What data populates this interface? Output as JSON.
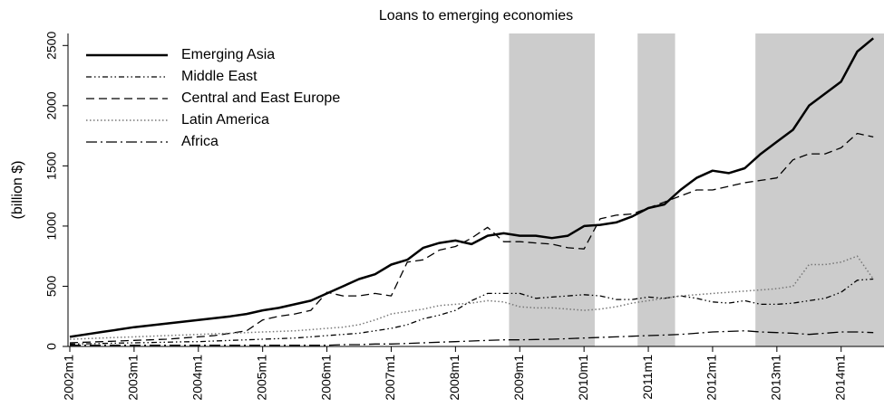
{
  "chart_data": {
    "type": "line",
    "title": "Loans to emerging economies",
    "y_label": "(billion $)",
    "x": [
      "2002m1",
      "2002m4",
      "2002m7",
      "2002m10",
      "2003m1",
      "2003m4",
      "2003m7",
      "2003m10",
      "2004m1",
      "2004m4",
      "2004m7",
      "2004m10",
      "2005m1",
      "2005m4",
      "2005m7",
      "2005m10",
      "2006m1",
      "2006m4",
      "2006m7",
      "2006m10",
      "2007m1",
      "2007m4",
      "2007m7",
      "2007m10",
      "2008m1",
      "2008m4",
      "2008m7",
      "2008m10",
      "2009m1",
      "2009m4",
      "2009m7",
      "2009m10",
      "2010m1",
      "2010m4",
      "2010m7",
      "2010m10",
      "2011m1",
      "2011m4",
      "2011m7",
      "2011m10",
      "2012m1",
      "2012m4",
      "2012m7",
      "2012m10",
      "2013m1",
      "2013m4",
      "2013m7",
      "2013m10",
      "2014m1",
      "2014m4",
      "2014m7"
    ],
    "xlim": [
      "2002m1",
      "2014m9"
    ],
    "xticks": [
      "2002m1",
      "2003m1",
      "2004m1",
      "2005m1",
      "2006m1",
      "2007m1",
      "2008m1",
      "2009m1",
      "2010m1",
      "2011m1",
      "2012m1",
      "2013m1",
      "2014m1"
    ],
    "ylim": [
      0,
      2600
    ],
    "yticks": [
      0,
      500,
      1000,
      1500,
      2000,
      2500
    ],
    "shaded_periods": [
      {
        "start": "2008m11",
        "end": "2010m3"
      },
      {
        "start": "2010m11",
        "end": "2011m6"
      },
      {
        "start": "2012m9",
        "end": "2014m9"
      }
    ],
    "shade_color": "#cccccc",
    "series": [
      {
        "name": "Emerging Asia",
        "color": "#000000",
        "dash": "none",
        "width": 2.5,
        "values": [
          80,
          100,
          120,
          140,
          160,
          175,
          190,
          205,
          220,
          235,
          250,
          270,
          300,
          320,
          350,
          380,
          440,
          500,
          560,
          600,
          680,
          720,
          820,
          860,
          880,
          850,
          920,
          940,
          920,
          920,
          900,
          920,
          1000,
          1010,
          1030,
          1080,
          1150,
          1180,
          1300,
          1400,
          1460,
          1440,
          1480,
          1600,
          1700,
          1800,
          2000,
          2100,
          2200,
          2450,
          2560
        ]
      },
      {
        "name": "Middle East",
        "color": "#000000",
        "dash": "6 3 1.5 3 1.5 3",
        "width": 1.3,
        "values": [
          20,
          22,
          25,
          28,
          30,
          32,
          35,
          38,
          40,
          45,
          50,
          55,
          60,
          65,
          70,
          80,
          90,
          100,
          110,
          130,
          150,
          180,
          230,
          260,
          300,
          380,
          440,
          440,
          440,
          400,
          410,
          420,
          430,
          420,
          390,
          390,
          410,
          400,
          420,
          400,
          370,
          360,
          380,
          350,
          350,
          360,
          380,
          400,
          450,
          550,
          560
        ]
      },
      {
        "name": "Central and East Europe",
        "color": "#000000",
        "dash": "9 5",
        "width": 1.3,
        "values": [
          30,
          35,
          40,
          45,
          50,
          55,
          60,
          70,
          80,
          90,
          110,
          130,
          220,
          250,
          270,
          300,
          450,
          420,
          420,
          440,
          420,
          700,
          720,
          800,
          830,
          900,
          990,
          870,
          870,
          860,
          850,
          820,
          810,
          1060,
          1090,
          1100,
          1150,
          1200,
          1250,
          1300,
          1300,
          1330,
          1360,
          1380,
          1400,
          1550,
          1600,
          1600,
          1650,
          1770,
          1740
        ]
      },
      {
        "name": "Latin America",
        "color": "#777777",
        "dash": "1.5 2.5",
        "width": 1.5,
        "values": [
          60,
          65,
          70,
          75,
          80,
          85,
          90,
          95,
          100,
          105,
          110,
          115,
          120,
          125,
          130,
          140,
          150,
          160,
          180,
          220,
          270,
          290,
          310,
          340,
          350,
          360,
          380,
          370,
          330,
          320,
          320,
          310,
          300,
          310,
          330,
          360,
          380,
          400,
          420,
          430,
          440,
          450,
          460,
          470,
          480,
          500,
          680,
          680,
          700,
          750,
          560
        ]
      },
      {
        "name": "Africa",
        "color": "#000000",
        "dash": "12 4 2 4",
        "width": 1.3,
        "values": [
          10,
          10,
          10,
          10,
          10,
          10,
          10,
          10,
          10,
          10,
          10,
          10,
          10,
          10,
          10,
          10,
          10,
          15,
          15,
          20,
          20,
          25,
          30,
          35,
          40,
          45,
          50,
          55,
          55,
          58,
          60,
          65,
          70,
          75,
          80,
          85,
          90,
          95,
          100,
          110,
          120,
          125,
          130,
          120,
          115,
          110,
          100,
          110,
          120,
          120,
          115
        ]
      }
    ]
  }
}
